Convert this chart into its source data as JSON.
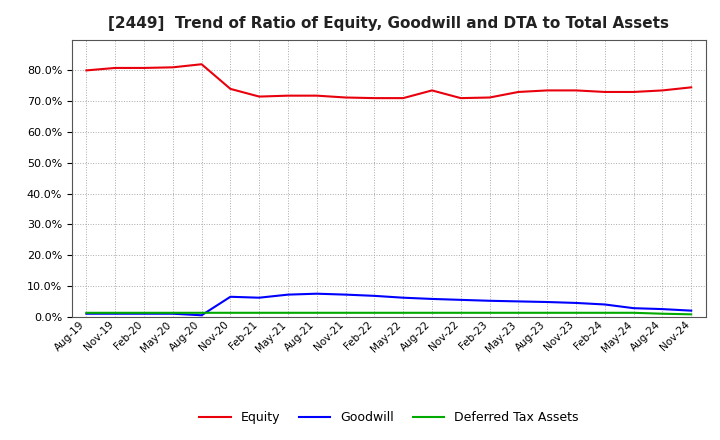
{
  "title": "[2449]  Trend of Ratio of Equity, Goodwill and DTA to Total Assets",
  "x_labels": [
    "Aug-19",
    "Nov-19",
    "Feb-20",
    "May-20",
    "Aug-20",
    "Nov-20",
    "Feb-21",
    "May-21",
    "Aug-21",
    "Nov-21",
    "Feb-22",
    "May-22",
    "Aug-22",
    "Nov-22",
    "Feb-23",
    "May-23",
    "Aug-23",
    "Nov-23",
    "Feb-24",
    "May-24",
    "Aug-24",
    "Nov-24"
  ],
  "equity": [
    0.8,
    0.808,
    0.808,
    0.81,
    0.82,
    0.74,
    0.715,
    0.718,
    0.718,
    0.712,
    0.71,
    0.71,
    0.735,
    0.71,
    0.712,
    0.73,
    0.735,
    0.735,
    0.73,
    0.73,
    0.735,
    0.745
  ],
  "goodwill": [
    0.01,
    0.01,
    0.01,
    0.01,
    0.005,
    0.065,
    0.062,
    0.072,
    0.075,
    0.072,
    0.068,
    0.062,
    0.058,
    0.055,
    0.052,
    0.05,
    0.048,
    0.045,
    0.04,
    0.028,
    0.025,
    0.02
  ],
  "dta": [
    0.013,
    0.013,
    0.013,
    0.013,
    0.013,
    0.013,
    0.013,
    0.013,
    0.013,
    0.013,
    0.013,
    0.013,
    0.013,
    0.013,
    0.013,
    0.013,
    0.013,
    0.013,
    0.013,
    0.013,
    0.01,
    0.008
  ],
  "equity_color": "#e8000d",
  "goodwill_color": "#0000ff",
  "dta_color": "#00aa00",
  "ylim": [
    0.0,
    0.9
  ],
  "yticks": [
    0.0,
    0.1,
    0.2,
    0.3,
    0.4,
    0.5,
    0.6,
    0.7,
    0.8
  ],
  "background_color": "#ffffff",
  "plot_bg_color": "#ffffff",
  "grid_color": "#aaaaaa",
  "line_width": 1.5,
  "title_fontsize": 11,
  "legend_labels": [
    "Equity",
    "Goodwill",
    "Deferred Tax Assets"
  ]
}
